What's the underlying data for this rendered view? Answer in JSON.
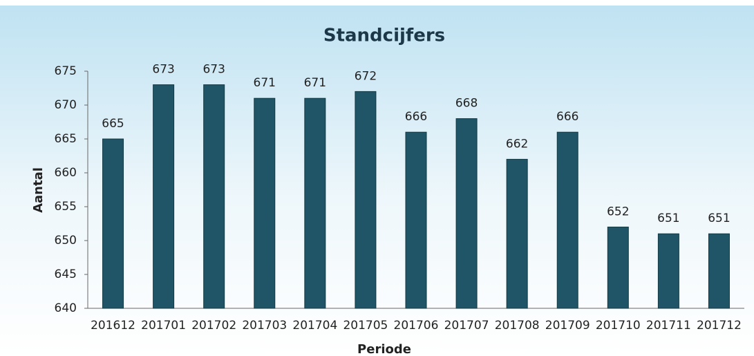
{
  "chart_data": {
    "type": "bar",
    "title": "Standcijfers",
    "xlabel": "Periode",
    "ylabel": "Aantal",
    "categories": [
      "201612",
      "201701",
      "201702",
      "201703",
      "201704",
      "201705",
      "201706",
      "201707",
      "201708",
      "201709",
      "201710",
      "201711",
      "201712"
    ],
    "values": [
      665,
      673,
      673,
      671,
      671,
      672,
      666,
      668,
      662,
      666,
      652,
      651,
      651
    ],
    "color": "#1f5566",
    "ylim": [
      640,
      675
    ],
    "yticks": [
      640,
      645,
      650,
      655,
      660,
      665,
      670,
      675
    ]
  }
}
